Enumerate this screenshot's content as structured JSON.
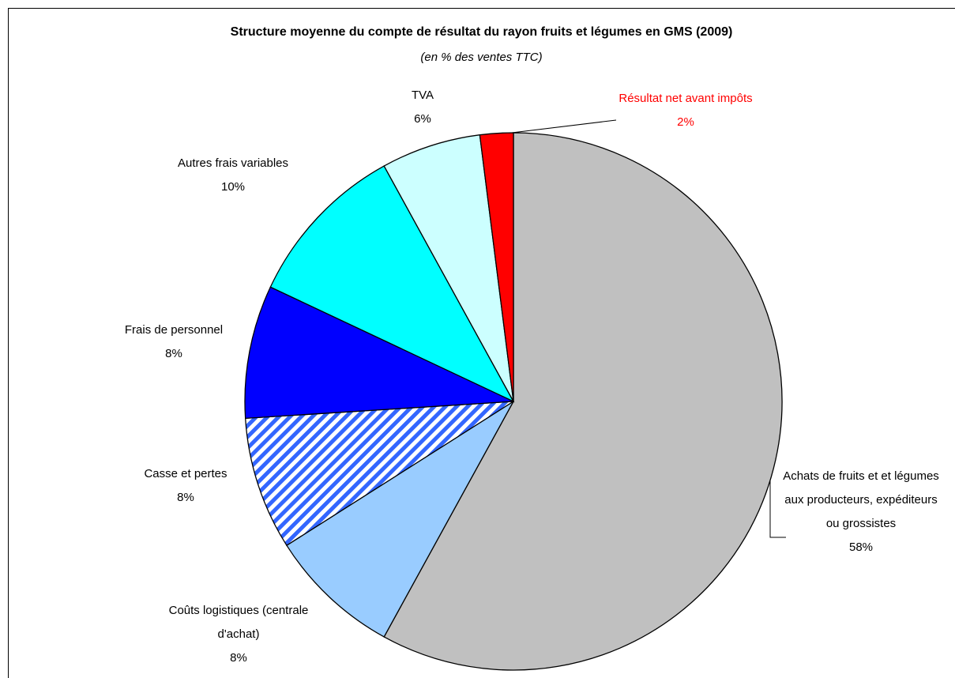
{
  "chart_data": {
    "type": "pie",
    "title": "Structure moyenne du compte de résultat du rayon fruits et légumes en GMS (2009)",
    "subtitle": "(en % des ventes TTC)",
    "categories": [
      "Achats de fruits et et légumes aux producteurs, expéditeurs ou grossistes",
      "Coûts logistiques (centrale d'achat)",
      "Casse et pertes",
      "Frais de personnel",
      "Autres frais variables",
      "TVA",
      "Résultat net avant impôts"
    ],
    "values": [
      58,
      8,
      8,
      8,
      10,
      6,
      2
    ],
    "value_labels": [
      "58%",
      "8%",
      "8%",
      "8%",
      "10%",
      "6%",
      "2%"
    ],
    "colors": [
      "#c0c0c0",
      "#99ccff",
      "#3366ff",
      "#0000ff",
      "#00ffff",
      "#ccffff",
      "#ff0000"
    ],
    "hatch": [
      false,
      false,
      true,
      false,
      false,
      false,
      false
    ],
    "label_colors": [
      "#000000",
      "#000000",
      "#000000",
      "#000000",
      "#000000",
      "#000000",
      "#ff0000"
    ]
  }
}
